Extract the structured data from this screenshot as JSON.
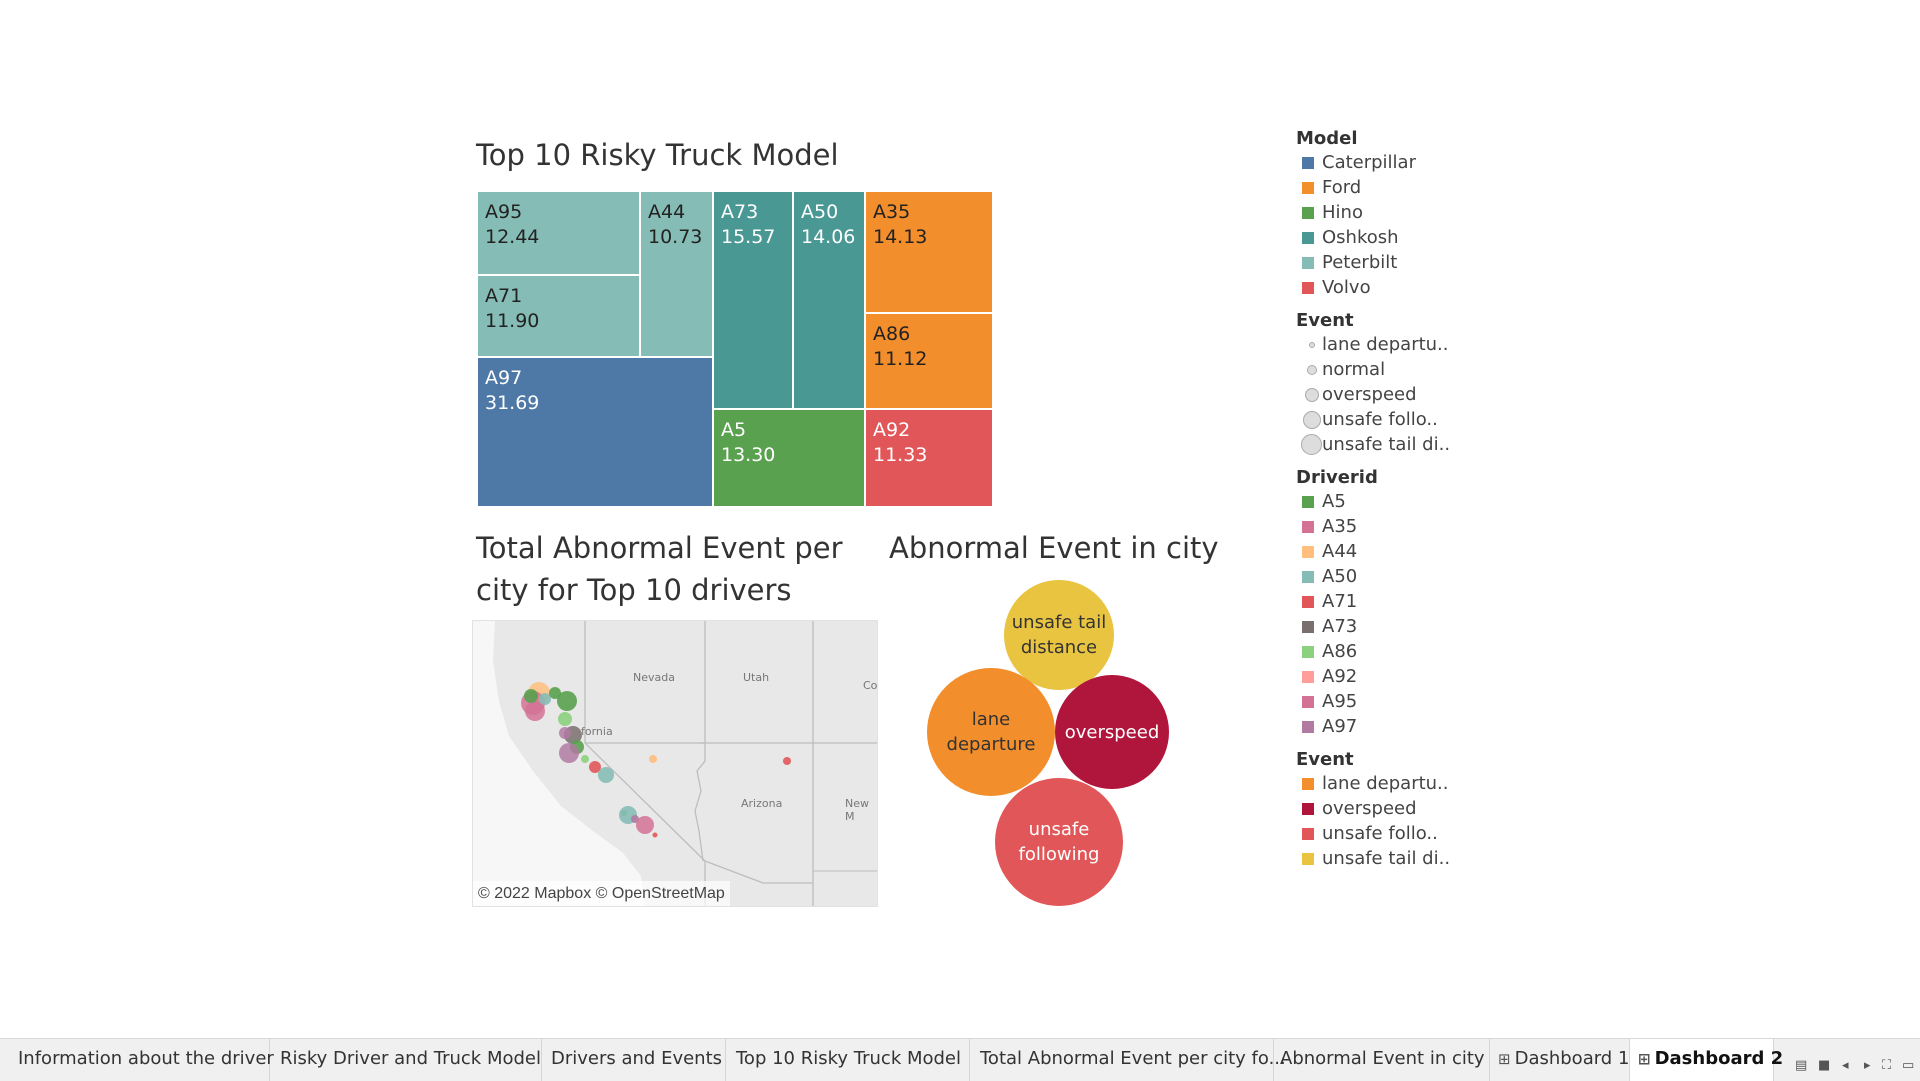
{
  "treemap": {
    "title": "Top 10 Risky Truck Model",
    "tiles": [
      {
        "label": "A95",
        "value": "12.44",
        "model": "Peterbilt"
      },
      {
        "label": "A44",
        "value": "10.73",
        "model": "Peterbilt"
      },
      {
        "label": "A71",
        "value": "11.90",
        "model": "Peterbilt"
      },
      {
        "label": "A97",
        "value": "31.69",
        "model": "Caterpillar"
      },
      {
        "label": "A73",
        "value": "15.57",
        "model": "Oshkosh"
      },
      {
        "label": "A50",
        "value": "14.06",
        "model": "Oshkosh"
      },
      {
        "label": "A5",
        "value": "13.30",
        "model": "Hino"
      },
      {
        "label": "A35",
        "value": "14.13",
        "model": "Ford"
      },
      {
        "label": "A86",
        "value": "11.12",
        "model": "Ford"
      },
      {
        "label": "A92",
        "value": "11.33",
        "model": "Volvo"
      }
    ]
  },
  "map": {
    "title": "Total Abnormal Event per city for Top 10 drivers",
    "labels": {
      "nevada": "Nevada",
      "utah": "Utah",
      "california": "fornia",
      "arizona": "Arizona",
      "colorado": "Co",
      "newmexico": "New M"
    },
    "attribution": "© 2022 Mapbox © OpenStreetMap"
  },
  "bubbles": {
    "title": "Abnormal Event in city",
    "items": [
      {
        "label": "unsafe tail distance",
        "color": "#e9c440"
      },
      {
        "label": "lane departure",
        "color": "#f28e2b"
      },
      {
        "label": "overspeed",
        "color": "#b0163c"
      },
      {
        "label": "unsafe following",
        "color": "#e15759"
      }
    ]
  },
  "legend": {
    "model": {
      "title": "Model",
      "items": [
        {
          "label": "Caterpillar",
          "color": "#4e79a7"
        },
        {
          "label": "Ford",
          "color": "#f28e2b"
        },
        {
          "label": "Hino",
          "color": "#59a14f"
        },
        {
          "label": "Oshkosh",
          "color": "#499894"
        },
        {
          "label": "Peterbilt",
          "color": "#86bcb6"
        },
        {
          "label": "Volvo",
          "color": "#e15759"
        }
      ]
    },
    "event_size": {
      "title": "Event",
      "items": [
        {
          "label": "lane departu.."
        },
        {
          "label": "normal"
        },
        {
          "label": "overspeed"
        },
        {
          "label": "unsafe follo.."
        },
        {
          "label": "unsafe tail di.."
        }
      ]
    },
    "driver": {
      "title": "Driverid",
      "items": [
        {
          "label": "A5",
          "color": "#59a14f"
        },
        {
          "label": "A35",
          "color": "#d37295"
        },
        {
          "label": "A44",
          "color": "#ffbe7d"
        },
        {
          "label": "A50",
          "color": "#86bcb6"
        },
        {
          "label": "A71",
          "color": "#e15759"
        },
        {
          "label": "A73",
          "color": "#79706e"
        },
        {
          "label": "A86",
          "color": "#8cd17d"
        },
        {
          "label": "A92",
          "color": "#ff9d9a"
        },
        {
          "label": "A95",
          "color": "#d37295"
        },
        {
          "label": "A97",
          "color": "#b07aa1"
        }
      ]
    },
    "event_color": {
      "title": "Event",
      "items": [
        {
          "label": "lane departu..",
          "color": "#f28e2b"
        },
        {
          "label": "overspeed",
          "color": "#b0163c"
        },
        {
          "label": "unsafe follo..",
          "color": "#e15759"
        },
        {
          "label": "unsafe tail di..",
          "color": "#e9c440"
        }
      ]
    }
  },
  "tabs": [
    {
      "label": "Information about the driver"
    },
    {
      "label": "Risky Driver and Truck Model"
    },
    {
      "label": "Drivers and Events"
    },
    {
      "label": "Top 10 Risky Truck Model"
    },
    {
      "label": "Total Abnormal Event per city fo..."
    },
    {
      "label": "Abnormal Event in city"
    },
    {
      "label": "Dashboard 1"
    },
    {
      "label": "Dashboard 2"
    }
  ]
}
